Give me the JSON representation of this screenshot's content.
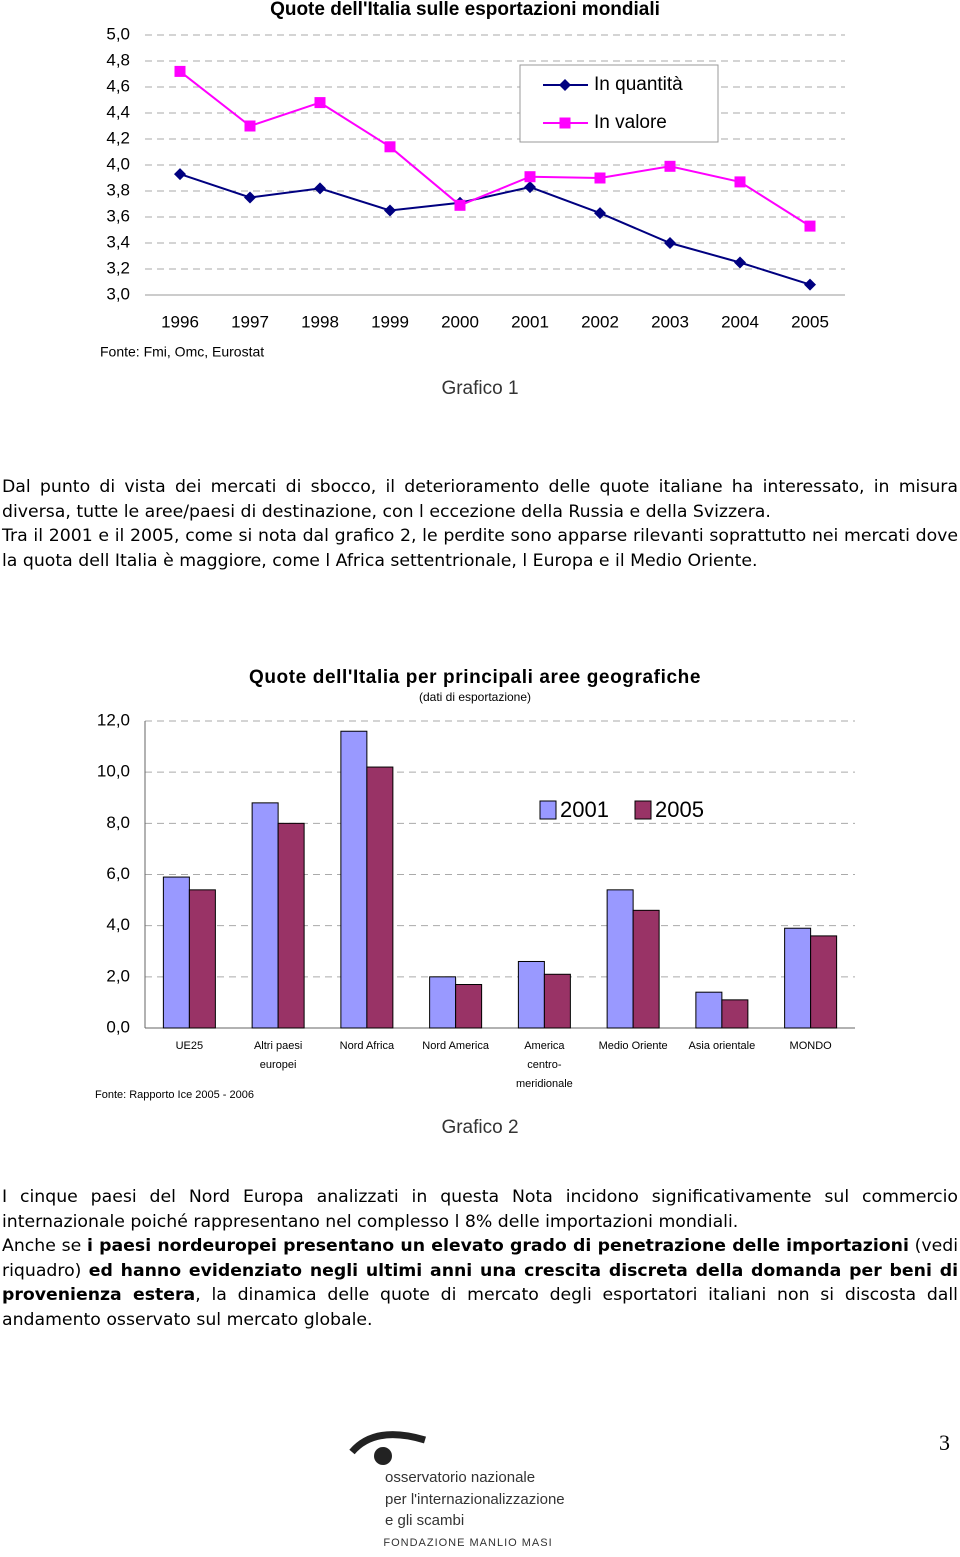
{
  "chart_data": [
    {
      "type": "line",
      "title": "Quote dell'Italia sulle esportazioni mondiali",
      "categories": [
        "1996",
        "1997",
        "1998",
        "1999",
        "2000",
        "2001",
        "2002",
        "2003",
        "2004",
        "2005"
      ],
      "series": [
        {
          "name": "In quantità",
          "color": "#000080",
          "marker": "diamond",
          "values": [
            3.93,
            3.75,
            3.82,
            3.65,
            3.71,
            3.83,
            3.63,
            3.4,
            3.25,
            3.08
          ]
        },
        {
          "name": "In valore",
          "color": "#ff00ff",
          "marker": "square",
          "values": [
            4.72,
            4.3,
            4.48,
            4.14,
            3.69,
            3.91,
            3.9,
            3.99,
            3.87,
            3.53
          ]
        }
      ],
      "ylim": [
        3.0,
        5.0
      ],
      "yticks": [
        {
          "value": 3.0,
          "label": "3,0"
        },
        {
          "value": 3.2,
          "label": "3,2"
        },
        {
          "value": 3.4,
          "label": "3,4"
        },
        {
          "value": 3.6,
          "label": "3,6"
        },
        {
          "value": 3.8,
          "label": "3,8"
        },
        {
          "value": 4.0,
          "label": "4,0"
        },
        {
          "value": 4.2,
          "label": "4,2"
        },
        {
          "value": 4.4,
          "label": "4,4"
        },
        {
          "value": 4.6,
          "label": "4,6"
        },
        {
          "value": 4.8,
          "label": "4,8"
        },
        {
          "value": 5.0,
          "label": "5,0"
        }
      ],
      "grid": true,
      "source": "Fonte: Fmi, Omc, Eurostat",
      "caption": "Grafico 1"
    },
    {
      "type": "bar",
      "title": "Quote dell'Italia per principali aree geografiche",
      "subtitle": "(dati di esportazione)",
      "categories": [
        "UE25",
        "Altri paesi europei",
        "Nord Africa",
        "Nord America",
        "America centro-meridionale",
        "Medio Oriente",
        "Asia orientale",
        "MONDO"
      ],
      "series": [
        {
          "name": "2001",
          "color": "#9999ff",
          "values": [
            5.9,
            8.8,
            11.6,
            2.0,
            2.6,
            5.4,
            1.4,
            3.9
          ]
        },
        {
          "name": "2005",
          "color": "#993366",
          "values": [
            5.4,
            8.0,
            10.2,
            1.7,
            2.1,
            4.6,
            1.1,
            3.6
          ]
        }
      ],
      "ylim": [
        0,
        12
      ],
      "yticks": [
        {
          "value": 0,
          "label": "0,0"
        },
        {
          "value": 2,
          "label": "2,0"
        },
        {
          "value": 4,
          "label": "4,0"
        },
        {
          "value": 6,
          "label": "6,0"
        },
        {
          "value": 8,
          "label": "8,0"
        },
        {
          "value": 10,
          "label": "10,0"
        },
        {
          "value": 12,
          "label": "12,0"
        }
      ],
      "grid": true,
      "source": "Fonte: Rapporto Ice 2005 - 2006",
      "caption": "Grafico 2"
    }
  ],
  "document": {
    "sections": [
      {
        "paragraphs": [
          [
            "Dal punto di vista dei mercati di sbocco, il deterioramento delle quote italiane ha interessato, in misura diversa, tutte le aree/paesi di destinazione, con l eccezione della Russia e della Svizzera."
          ],
          [
            "Tra il 2001 e il 2005, come si nota dal grafico 2, le perdite sono apparse rilevanti soprattutto nei mercati dove la quota dell Italia è maggiore, come l Africa settentrionale, l Europa e il Medio Oriente."
          ]
        ]
      },
      {
        "paragraphs": [
          [
            "I cinque paesi del Nord Europa analizzati in questa Nota incidono significativamente sul commercio internazionale poiché rappresentano nel complesso l 8% delle importazioni mondiali."
          ],
          [
            "Anche se ",
            {
              "text": "i paesi nordeuropei presentano un elevato grado di penetrazione delle importazioni",
              "bold": true
            },
            " (vedi riquadro) ",
            {
              "text": "ed hanno evidenziato negli ultimi anni una crescita discreta della domanda per beni di provenienza estera",
              "bold": true
            },
            ", la dinamica delle quote di mercato degli esportatori italiani non si discosta dall andamento osservato sul mercato globale."
          ]
        ]
      }
    ],
    "page_number": "3",
    "logo": {
      "lines": [
        "osservatorio nazionale",
        "per l'internazionalizzazione",
        "e gli scambi"
      ],
      "foundation": "FONDAZIONE MANLIO MASI"
    }
  }
}
